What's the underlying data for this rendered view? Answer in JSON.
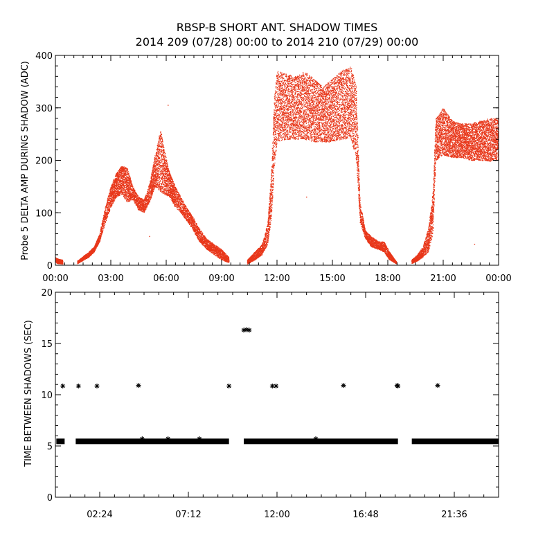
{
  "title_line1": "RBSP-B SHORT ANT. SHADOW TIMES",
  "title_line2": "2014 209 (07/28) 00:00 to 2014 210 (07/29) 00:00",
  "chart_data": [
    {
      "type": "scatter",
      "ylabel": "Probe 5 DELTA AMP DURING SHADOW (ADC)",
      "ylim": [
        0,
        400
      ],
      "xlim_hours": [
        0,
        24
      ],
      "x_ticks": [
        "00:00",
        "03:00",
        "06:00",
        "09:00",
        "12:00",
        "15:00",
        "18:00",
        "21:00",
        "00:00"
      ],
      "y_ticks": [
        "0",
        "100",
        "200",
        "300",
        "400"
      ],
      "color": "#e8371a",
      "series": [
        {
          "band": "segments",
          "segments": [
            {
              "x": [
                0.0,
                0.15,
                0.4
              ],
              "lo": [
                5,
                3,
                2
              ],
              "hi": [
                15,
                12,
                10
              ]
            },
            {
              "x": [
                1.2,
                1.8,
                2.1,
                2.4,
                2.7,
                3.0,
                3.3,
                3.6,
                3.9,
                4.2,
                4.5,
                4.8,
                5.1,
                5.4,
                5.7,
                5.9,
                6.2,
                6.5,
                6.8,
                7.1,
                7.4,
                7.8,
                8.2,
                8.6,
                9.0,
                9.4
              ],
              "lo": [
                3,
                15,
                25,
                45,
                80,
                110,
                130,
                135,
                120,
                125,
                105,
                100,
                120,
                150,
                140,
                135,
                130,
                110,
                100,
                85,
                70,
                45,
                30,
                20,
                10,
                5
              ],
              "hi": [
                8,
                25,
                35,
                60,
                110,
                150,
                175,
                190,
                185,
                150,
                130,
                125,
                155,
                210,
                260,
                220,
                175,
                150,
                130,
                110,
                95,
                70,
                50,
                40,
                30,
                15
              ]
            },
            {
              "x": [
                10.4,
                10.8,
                11.2,
                11.5,
                11.7,
                11.85,
                12.0,
                12.5,
                13.0,
                13.5,
                14.0,
                14.5,
                15.0,
                15.5,
                16.0,
                16.3,
                16.5,
                16.8,
                17.1,
                17.5,
                17.8,
                18.1,
                18.5
              ],
              "lo": [
                2,
                10,
                20,
                40,
                90,
                180,
                235,
                240,
                240,
                240,
                235,
                235,
                235,
                240,
                240,
                200,
                80,
                50,
                35,
                30,
                25,
                10,
                2
              ],
              "hi": [
                10,
                25,
                40,
                80,
                180,
                320,
                370,
                365,
                360,
                370,
                355,
                340,
                355,
                370,
                380,
                340,
                120,
                65,
                55,
                45,
                45,
                25,
                5
              ]
            },
            {
              "x": [
                19.3,
                19.6,
                19.9,
                20.2,
                20.45,
                20.6,
                20.75,
                21.0,
                21.5,
                22.0,
                22.5,
                23.0,
                23.5,
                24.0
              ],
              "lo": [
                3,
                8,
                15,
                25,
                60,
                195,
                205,
                210,
                205,
                205,
                200,
                200,
                198,
                200
              ],
              "hi": [
                10,
                20,
                35,
                70,
                140,
                280,
                285,
                300,
                275,
                270,
                270,
                275,
                280,
                280
              ]
            }
          ]
        }
      ],
      "annotations": [
        {
          "x": 6.1,
          "y": 305
        },
        {
          "x": 13.6,
          "y": 130
        },
        {
          "x": 22.7,
          "y": 40
        },
        {
          "x": 5.1,
          "y": 55
        }
      ]
    },
    {
      "type": "scatter",
      "ylabel": "TIME BETWEEN SHADOWS (SEC)",
      "ylim": [
        0,
        20
      ],
      "xlim_hours": [
        0,
        24
      ],
      "x_ticks": [
        {
          "label": "02:24",
          "hours": 2.4
        },
        {
          "label": "07:12",
          "hours": 7.2
        },
        {
          "label": "12:00",
          "hours": 12.0
        },
        {
          "label": "16:48",
          "hours": 16.8
        },
        {
          "label": "21:36",
          "hours": 21.6
        }
      ],
      "y_ticks": [
        "0",
        "5",
        "10",
        "15",
        "20"
      ],
      "color": "#000000",
      "baseline": {
        "y": 5.45,
        "ranges": [
          [
            0.05,
            0.5
          ],
          [
            1.1,
            9.4
          ],
          [
            10.2,
            18.55
          ],
          [
            19.3,
            24.0
          ]
        ]
      },
      "points": [
        {
          "x": 0.4,
          "y": 10.85
        },
        {
          "x": 1.25,
          "y": 10.85
        },
        {
          "x": 2.25,
          "y": 10.85
        },
        {
          "x": 4.5,
          "y": 10.9
        },
        {
          "x": 9.4,
          "y": 10.85
        },
        {
          "x": 10.2,
          "y": 16.3
        },
        {
          "x": 10.35,
          "y": 16.35
        },
        {
          "x": 10.5,
          "y": 16.3
        },
        {
          "x": 11.75,
          "y": 10.85
        },
        {
          "x": 11.95,
          "y": 10.85
        },
        {
          "x": 15.6,
          "y": 10.9
        },
        {
          "x": 18.5,
          "y": 10.9
        },
        {
          "x": 18.55,
          "y": 10.85
        },
        {
          "x": 20.7,
          "y": 10.9
        },
        {
          "x": 4.7,
          "y": 5.7
        },
        {
          "x": 6.1,
          "y": 5.7
        },
        {
          "x": 7.8,
          "y": 5.7
        },
        {
          "x": 14.1,
          "y": 5.7
        }
      ]
    }
  ]
}
